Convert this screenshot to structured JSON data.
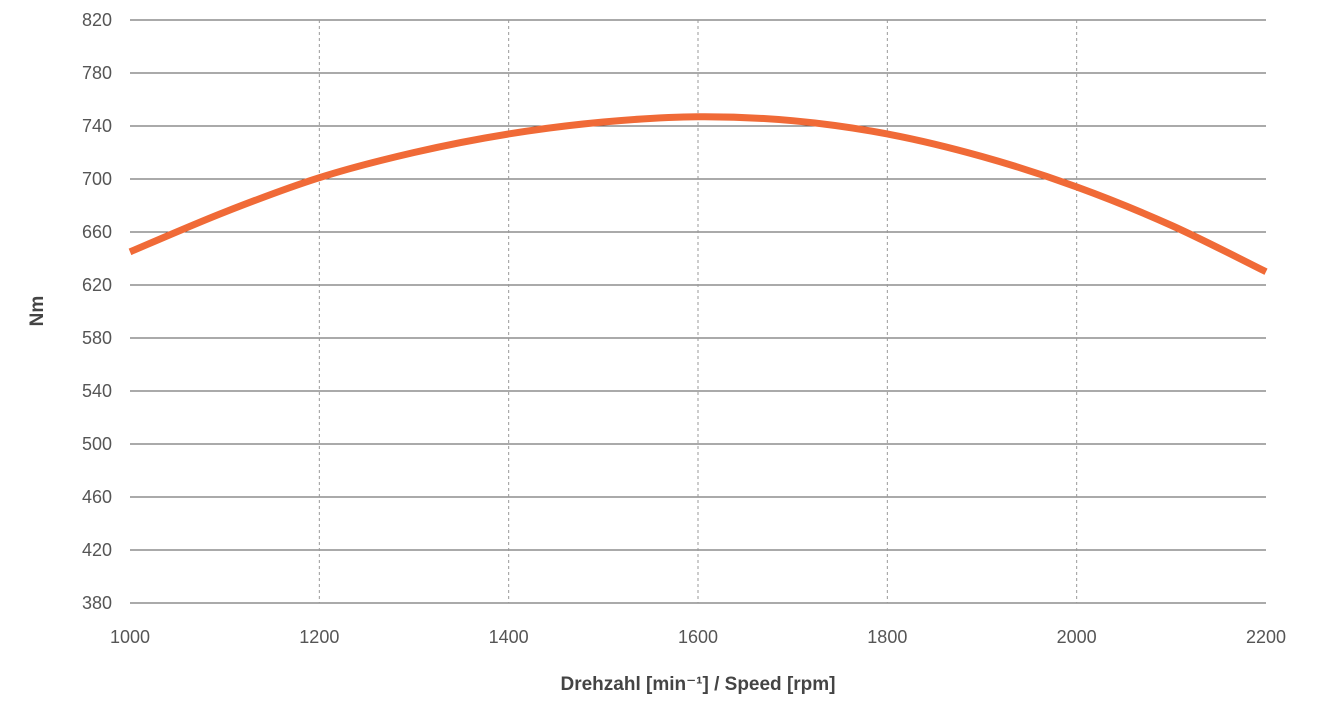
{
  "chart_data": {
    "type": "line",
    "xlabel": "Drehzahl [min⁻¹] / Speed [rpm]",
    "ylabel": "Nm",
    "xlim": [
      1000,
      2200
    ],
    "ylim": [
      380,
      820
    ],
    "x_ticks": [
      1000,
      1200,
      1400,
      1600,
      1800,
      2000,
      2200
    ],
    "y_ticks": [
      380,
      420,
      460,
      500,
      540,
      580,
      620,
      660,
      700,
      740,
      780,
      820
    ],
    "grid": {
      "horizontal": "solid",
      "vertical": "dotted"
    },
    "series": [
      {
        "color": "#f06a37",
        "x": [
          1000,
          1100,
          1200,
          1300,
          1400,
          1500,
          1600,
          1700,
          1800,
          1900,
          2000,
          2100,
          2200
        ],
        "y": [
          645,
          675,
          701,
          720,
          734,
          743,
          747,
          744,
          734,
          717,
          694,
          665,
          630
        ]
      }
    ]
  },
  "colors": {
    "line": "#f06a37",
    "grid_horizontal": "#555555",
    "grid_vertical": "#999999",
    "tick_text": "#555555",
    "title_text": "#444444"
  }
}
